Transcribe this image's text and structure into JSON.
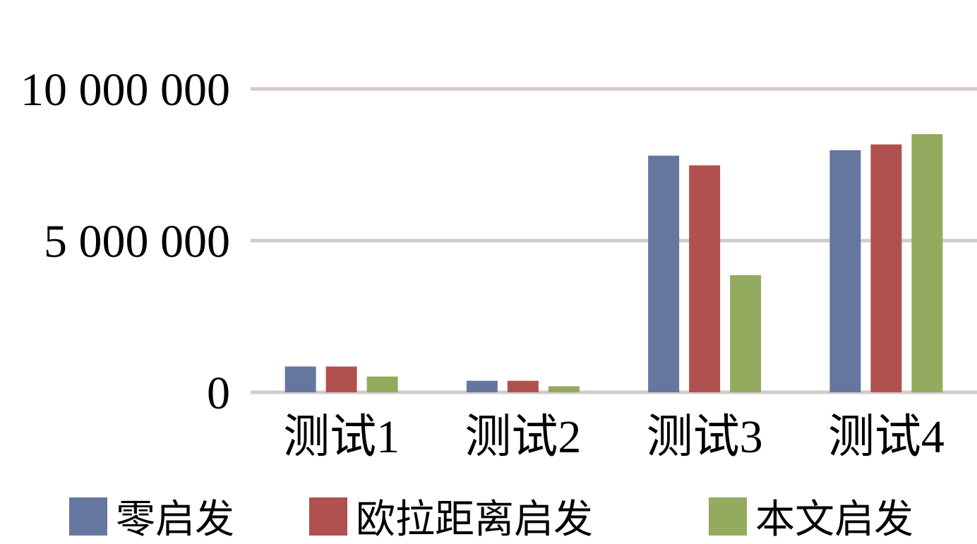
{
  "chart_data": {
    "type": "bar",
    "categories": [
      "测试1",
      "测试2",
      "测试3",
      "测试4"
    ],
    "series": [
      {
        "name": "零启发",
        "color": "#65779F",
        "values": [
          850000,
          380000,
          7800000,
          7980000
        ]
      },
      {
        "name": "欧拉距离启发",
        "color": "#B05150",
        "values": [
          850000,
          380000,
          7480000,
          8170000
        ]
      },
      {
        "name": "本文启发",
        "color": "#94AA5F",
        "values": [
          520000,
          200000,
          3860000,
          8510000
        ]
      }
    ],
    "y_ticks": [
      0,
      5000000,
      10000000
    ],
    "y_tick_labels": [
      "0",
      "5 000 000",
      "10 000 000"
    ],
    "ylim": [
      0,
      10000000
    ],
    "grid": true,
    "gridline_color": "#D3CBCB",
    "legend_position": "bottom"
  }
}
